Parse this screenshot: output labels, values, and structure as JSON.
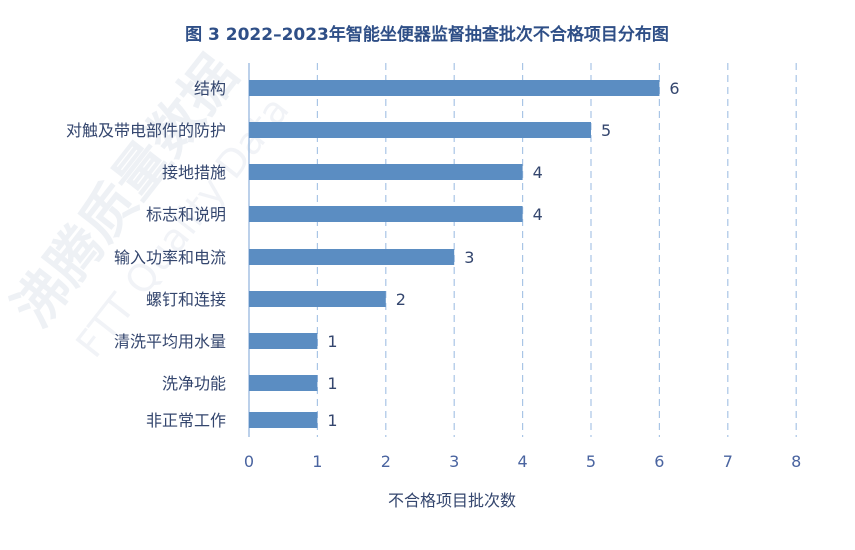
{
  "chart_data": {
    "type": "bar",
    "orientation": "horizontal",
    "title": "图 3   2022–2023年智能坐便器监督抽查批次不合格项目分布图",
    "xlabel": "不合格项目批次数",
    "ylabel": "",
    "categories": [
      "结构",
      "对触及带电部件的防护",
      "接地措施",
      "标志和说明",
      "输入功率和电流",
      "螺钉和连接",
      "清洗平均用水量",
      "洗净功能",
      "非正常工作"
    ],
    "values": [
      6,
      5,
      4,
      4,
      3,
      2,
      1,
      1,
      1
    ],
    "xlim": [
      0,
      8
    ],
    "xticks": [
      "0",
      "1",
      "2",
      "3",
      "4",
      "5",
      "6",
      "7",
      "8"
    ],
    "grid": true,
    "data_labels": true,
    "bar_color": "#5b8dc2",
    "legend": "none"
  },
  "watermark": {
    "cn": "沸腾质量数据",
    "en": "FTT Quality Data"
  }
}
